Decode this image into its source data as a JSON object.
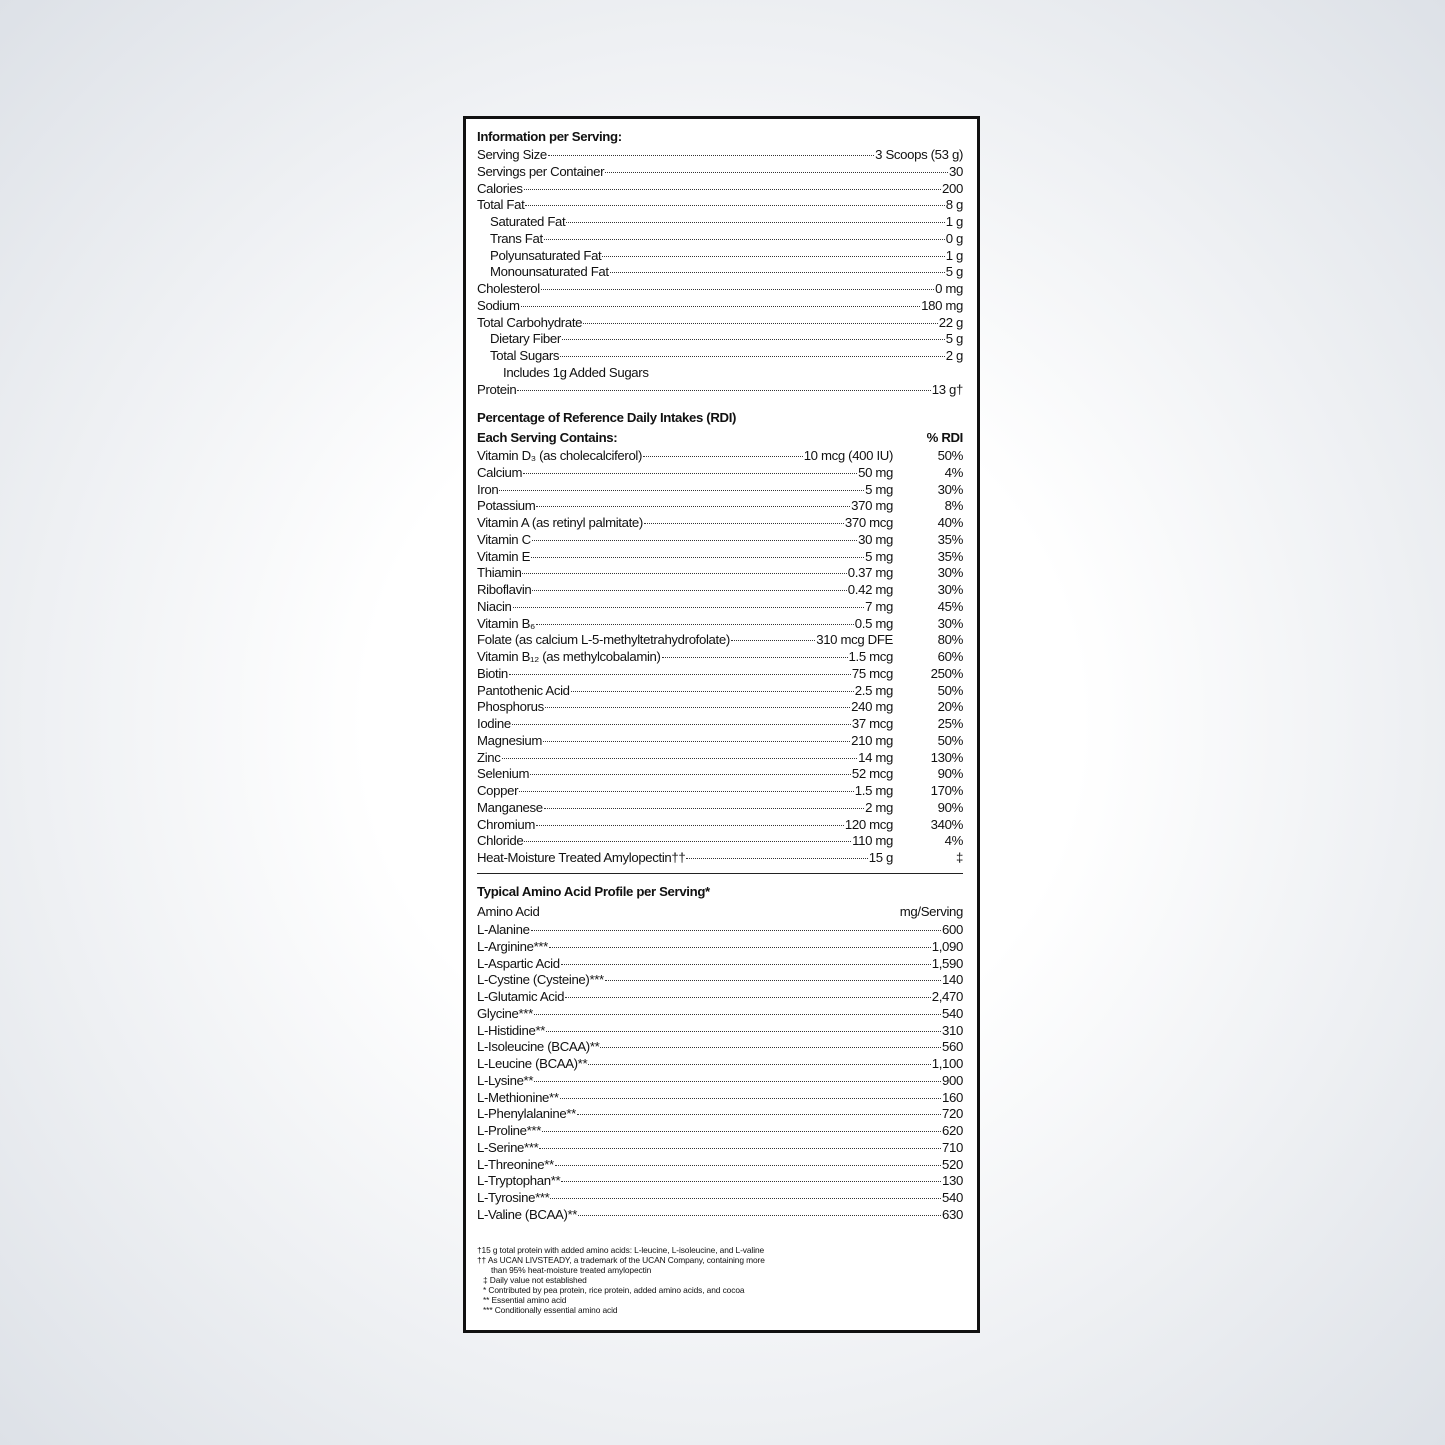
{
  "info": {
    "title": "Information per Serving:",
    "rows": [
      {
        "label": "Serving Size",
        "value": "3 Scoops (53 g)"
      },
      {
        "label": "Servings per Container",
        "value": "30"
      },
      {
        "label": "Calories",
        "value": "200"
      },
      {
        "label": "Total Fat",
        "value": "8 g",
        "items": [
          {
            "label": "Saturated Fat",
            "value": "1 g"
          },
          {
            "label": "Trans Fat",
            "value": "0 g"
          },
          {
            "label": "Polyunsaturated Fat",
            "value": "1 g"
          },
          {
            "label": "Monounsaturated Fat",
            "value": "5 g"
          }
        ]
      },
      {
        "label": "Cholesterol",
        "value": "0 mg"
      },
      {
        "label": "Sodium",
        "value": "180 mg"
      },
      {
        "label": "Total Carbohydrate",
        "value": "22 g",
        "items": [
          {
            "label": "Dietary Fiber",
            "value": "5 g"
          },
          {
            "label": "Total Sugars",
            "value": "2 g",
            "items": [
              {
                "label": "Includes 1g Added Sugars"
              }
            ]
          }
        ]
      },
      {
        "label": "Protein",
        "value": "13 g†"
      }
    ]
  },
  "rdi": {
    "title": "Percentage of Reference Daily Intakes (RDI)",
    "header": [
      "Each Serving Contains:",
      "% RDI"
    ],
    "rows": [
      [
        "Vitamin D₃ (as cholecalciferol)",
        "10 mcg (400 IU)",
        "50%"
      ],
      [
        "Calcium",
        "50 mg",
        "4%"
      ],
      [
        "Iron",
        "5 mg",
        "30%"
      ],
      [
        "Potassium",
        "370 mg",
        "8%"
      ],
      [
        "Vitamin A (as retinyl palmitate)",
        "370 mcg",
        "40%"
      ],
      [
        "Vitamin C",
        "30 mg",
        "35%"
      ],
      [
        "Vitamin E",
        "5 mg",
        "35%"
      ],
      [
        "Thiamin",
        "0.37 mg",
        "30%"
      ],
      [
        "Riboflavin",
        "0.42 mg",
        "30%"
      ],
      [
        "Niacin",
        "7 mg",
        "45%"
      ],
      [
        "Vitamin B₆",
        "0.5 mg",
        "30%"
      ],
      [
        "Folate (as calcium L-5-methyltetrahydrofolate)",
        "310 mcg DFE",
        "80%"
      ],
      [
        "Vitamin B₁₂ (as methylcobalamin)",
        "1.5 mcg",
        "60%"
      ],
      [
        "Biotin",
        "75 mcg",
        "250%"
      ],
      [
        "Pantothenic Acid",
        "2.5 mg",
        "50%"
      ],
      [
        "Phosphorus",
        "240 mg",
        "20%"
      ],
      [
        "Iodine",
        "37 mcg",
        "25%"
      ],
      [
        "Magnesium",
        "210 mg",
        "50%"
      ],
      [
        "Zinc",
        "14 mg",
        "130%"
      ],
      [
        "Selenium",
        "52 mcg",
        "90%"
      ],
      [
        "Copper",
        "1.5 mg",
        "170%"
      ],
      [
        "Manganese",
        "2 mg",
        "90%"
      ],
      [
        "Chromium",
        "120 mcg",
        "340%"
      ],
      [
        "Chloride",
        "110 mg",
        "4%"
      ],
      [
        "Heat-Moisture Treated Amylopectin††",
        "15 g",
        "‡"
      ]
    ]
  },
  "amino": {
    "title": "Typical Amino Acid Profile per Serving*",
    "header": [
      "Amino Acid",
      "mg/Serving"
    ],
    "rows": [
      [
        "L-Alanine",
        "600"
      ],
      [
        "L-Arginine***",
        "1,090"
      ],
      [
        "L-Aspartic Acid",
        "1,590"
      ],
      [
        "L-Cystine (Cysteine)***",
        "140"
      ],
      [
        "L-Glutamic Acid",
        "2,470"
      ],
      [
        "Glycine***",
        "540"
      ],
      [
        "L-Histidine**",
        "310"
      ],
      [
        "L-Isoleucine (BCAA)**",
        "560"
      ],
      [
        "L-Leucine (BCAA)**",
        "1,100"
      ],
      [
        "L-Lysine**",
        "900"
      ],
      [
        "L-Methionine**",
        "160"
      ],
      [
        "L-Phenylalanine**",
        "720"
      ],
      [
        "L-Proline***",
        "620"
      ],
      [
        "L-Serine***",
        "710"
      ],
      [
        "L-Threonine**",
        "520"
      ],
      [
        "L-Tryptophan**",
        "130"
      ],
      [
        "L-Tyrosine***",
        "540"
      ],
      [
        "L-Valine (BCAA)**",
        "630"
      ]
    ]
  },
  "footnotes": [
    "†15 g total protein with added amino acids: L-leucine, L-isoleucine, and L-valine",
    "†† As UCAN LIVSTEADY, a trademark of the UCAN Company, containing more",
    "than 95% heat-moisture treated amylopectin",
    "‡ Daily value not established",
    "* Contributed by pea protein, rice protein, added amino acids, and cocoa",
    "** Essential amino acid",
    "*** Conditionally essential amino acid"
  ]
}
